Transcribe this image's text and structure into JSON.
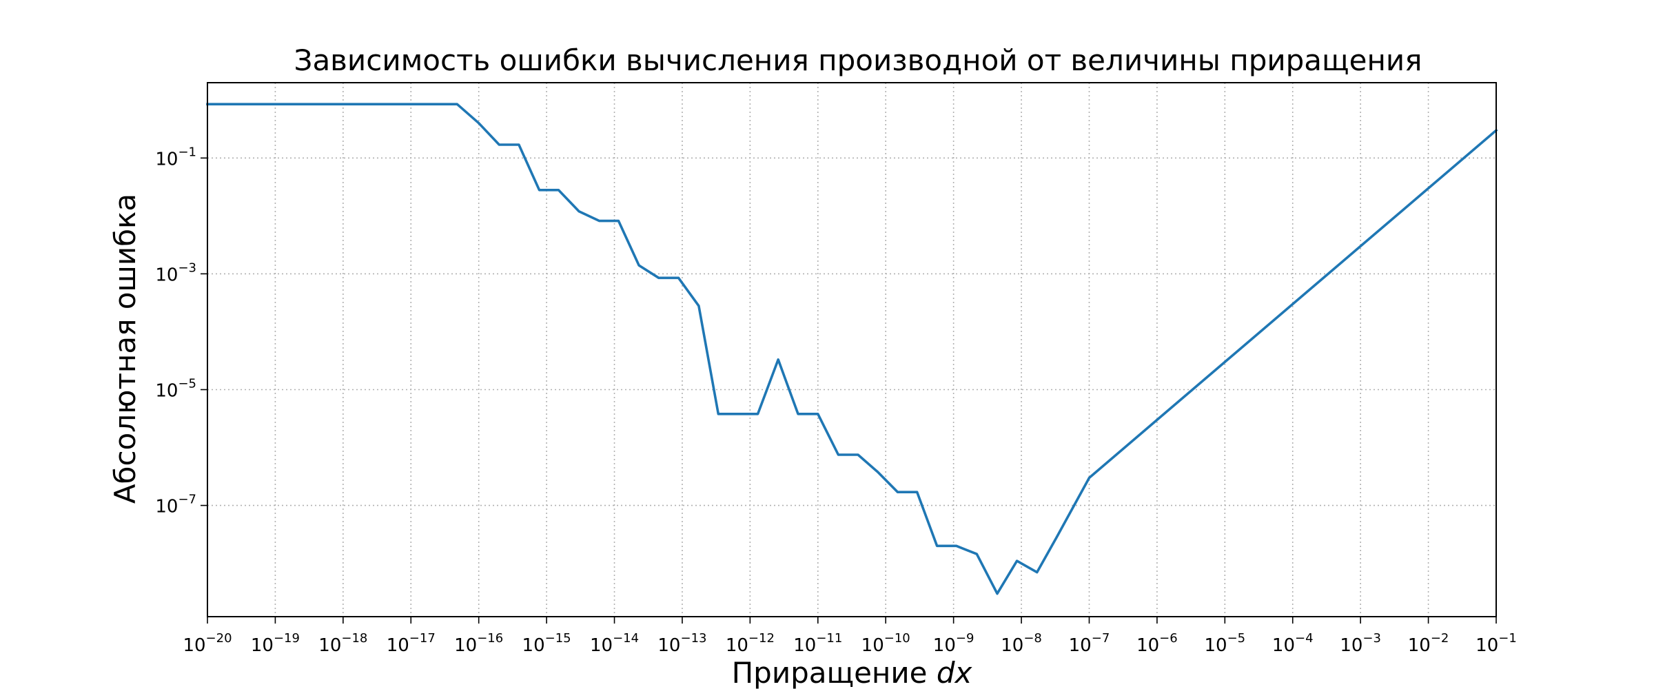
{
  "chart_data": {
    "type": "line",
    "title": "Зависимость ошибки вычисления производной от величины приращения",
    "xlabel_prefix": "Приращение ",
    "xlabel_var": "dx",
    "ylabel": "Абсолютная ошибка",
    "xscale": "log",
    "yscale": "log",
    "xlim": [
      1e-20,
      0.1
    ],
    "ylim": [
      1.2e-09,
      2.0
    ],
    "grid": true,
    "line_color": "#1f77b4",
    "xticks": [
      {
        "value": 1e-20,
        "base": "10",
        "exp": "−20"
      },
      {
        "value": 1e-19,
        "base": "10",
        "exp": "−19"
      },
      {
        "value": 1e-18,
        "base": "10",
        "exp": "−18"
      },
      {
        "value": 1e-17,
        "base": "10",
        "exp": "−17"
      },
      {
        "value": 1e-16,
        "base": "10",
        "exp": "−16"
      },
      {
        "value": 1e-15,
        "base": "10",
        "exp": "−15"
      },
      {
        "value": 1e-14,
        "base": "10",
        "exp": "−14"
      },
      {
        "value": 1e-13,
        "base": "10",
        "exp": "−13"
      },
      {
        "value": 1e-12,
        "base": "10",
        "exp": "−12"
      },
      {
        "value": 1e-11,
        "base": "10",
        "exp": "−11"
      },
      {
        "value": 1e-10,
        "base": "10",
        "exp": "−10"
      },
      {
        "value": 1e-09,
        "base": "10",
        "exp": "−9"
      },
      {
        "value": 1e-08,
        "base": "10",
        "exp": "−8"
      },
      {
        "value": 1e-07,
        "base": "10",
        "exp": "−7"
      },
      {
        "value": 1e-06,
        "base": "10",
        "exp": "−6"
      },
      {
        "value": 1e-05,
        "base": "10",
        "exp": "−5"
      },
      {
        "value": 0.0001,
        "base": "10",
        "exp": "−4"
      },
      {
        "value": 0.001,
        "base": "10",
        "exp": "−3"
      },
      {
        "value": 0.01,
        "base": "10",
        "exp": "−2"
      },
      {
        "value": 0.1,
        "base": "10",
        "exp": "−1"
      }
    ],
    "yticks": [
      {
        "value": 0.1,
        "base": "10",
        "exp": "−1"
      },
      {
        "value": 0.001,
        "base": "10",
        "exp": "−3"
      },
      {
        "value": 1e-05,
        "base": "10",
        "exp": "−5"
      },
      {
        "value": 1e-07,
        "base": "10",
        "exp": "−7"
      }
    ],
    "series": [
      {
        "x": [
          1e-20,
          2.9e-20,
          8.3e-20,
          2.4e-19,
          6.95e-19,
          2e-18,
          5.7e-18,
          1.65e-17,
          4.8e-17,
          1e-16,
          2e-16,
          3.9e-16,
          7.8e-16,
          1.5e-15,
          3e-15,
          6e-15,
          1.15e-14,
          2.3e-14,
          4.5e-14,
          8.8e-14,
          1.75e-13,
          3.4e-13,
          6.7e-13,
          1.3e-12,
          2.6e-12,
          5.1e-12,
          1e-11,
          2e-11,
          3.9e-11,
          7.6e-11,
          1.5e-10,
          2.9e-10,
          5.7e-10,
          1.1e-09,
          2.2e-09,
          4.4e-09,
          8.6e-09,
          1.7e-08,
          3.3e-08,
          1e-07,
          1e-06,
          1e-05,
          0.0001,
          0.001,
          0.01,
          0.1
        ],
        "y": [
          0.85,
          0.85,
          0.85,
          0.85,
          0.85,
          0.85,
          0.85,
          0.85,
          0.85,
          0.4,
          0.17,
          0.17,
          0.028,
          0.028,
          0.012,
          0.0082,
          0.0082,
          0.0014,
          0.00085,
          0.00085,
          0.00028,
          3.8e-06,
          3.8e-06,
          3.8e-06,
          3.3e-05,
          3.8e-06,
          3.8e-06,
          7.5e-07,
          7.5e-07,
          3.8e-07,
          1.7e-07,
          1.7e-07,
          2e-08,
          2e-08,
          1.45e-08,
          3e-09,
          1.1e-08,
          7e-09,
          2.8e-08,
          3e-07,
          3e-06,
          3e-05,
          0.0003,
          0.003,
          0.03,
          0.3
        ]
      }
    ]
  }
}
